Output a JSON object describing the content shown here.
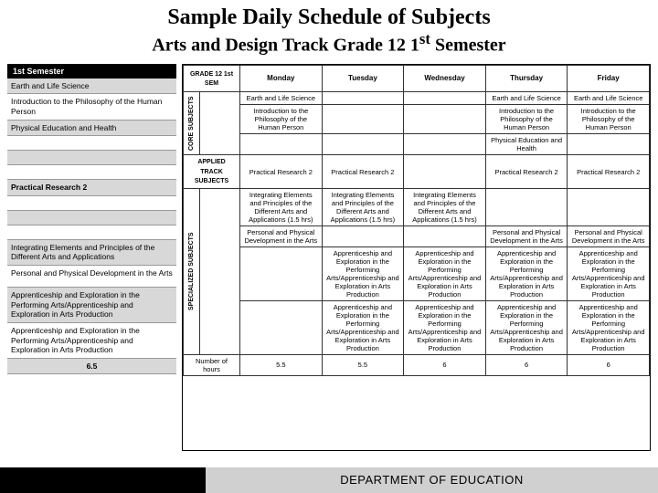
{
  "header": {
    "title": "Sample Daily Schedule of Subjects",
    "subtitle_pre": "Arts and Design Track Grade 12 1",
    "subtitle_sup": "st",
    "subtitle_post": " Semester"
  },
  "left": {
    "header": "1st Semester",
    "rows": [
      {
        "text": "Earth and Life Science",
        "gray": true
      },
      {
        "text": "Introduction to the Philosophy of the Human Person",
        "tall": true
      },
      {
        "text": "Physical Education and Health",
        "gray": true
      },
      {
        "text": ""
      },
      {
        "text": "",
        "gray": true
      },
      {
        "text": ""
      },
      {
        "text": "Practical Research 2",
        "gray": true,
        "bold": true
      },
      {
        "text": ""
      },
      {
        "text": "",
        "gray": true
      },
      {
        "text": ""
      },
      {
        "text": "Integrating Elements and Principles of the Different Arts and Applications",
        "gray": true,
        "tall": true
      },
      {
        "text": "Personal and Physical Development in the Arts",
        "tall": true
      },
      {
        "text": "Apprenticeship and Exploration in the Performing Arts/Apprenticeship and Exploration in Arts Production",
        "gray": true,
        "tall": true
      },
      {
        "text": "Apprenticeship and Exploration in the Performing Arts/Apprenticeship and Exploration in Arts Production",
        "tall": true
      },
      {
        "text": "6.5",
        "gray": true,
        "center": true,
        "bold": true
      }
    ]
  },
  "right": {
    "corner": "GRADE 12 1st SEM",
    "days": [
      "Monday",
      "Tuesday",
      "Wednesday",
      "Thursday",
      "Friday"
    ],
    "groups": {
      "core": "CORE SUBJECTS",
      "applied": "APPLIED TRACK SUBJECTS",
      "spec": "SPECIALIZED SUBJECTS"
    },
    "core_rows": [
      [
        "Earth and Life Science",
        "",
        "",
        "Earth and Life Science",
        "Earth and Life Science"
      ],
      [
        "Introduction to the Philosophy of the Human Person",
        "",
        "",
        "Introduction to the Philosophy of the Human Person",
        "Introduction to the Philosophy of the Human Person"
      ],
      [
        "",
        "",
        "",
        "Physical Education and Health",
        ""
      ]
    ],
    "applied_rows": [
      [
        "Practical Research 2",
        "Practical Research 2",
        "",
        "Practical Research 2",
        "Practical Research 2"
      ]
    ],
    "spec_rows": [
      [
        "Integrating Elements and Principles of the Different Arts and Applications (1.5 hrs)",
        "Integrating Elements and Principles of the Different Arts and Applications (1.5 hrs)",
        "Integrating Elements and Principles of the Different Arts and Applications (1.5 hrs)",
        "",
        ""
      ],
      [
        "Personal and Physical Development in the Arts",
        "",
        "",
        "Personal and Physical Development in the Arts",
        "Personal and Physical Development in the Arts"
      ],
      [
        "",
        "Apprenticeship and Exploration in the Performing Arts/Apprenticeship and Exploration in Arts Production",
        "Apprenticeship and Exploration in the Performing Arts/Apprenticeship and Exploration in Arts Production",
        "Apprenticeship and Exploration in the Performing Arts/Apprenticeship and Exploration in Arts Production",
        "Apprenticeship and Exploration in the Performing Arts/Apprenticeship and Exploration in Arts Production"
      ],
      [
        "",
        "Apprenticeship and Exploration in the Performing Arts/Apprenticeship and Exploration in Arts Production",
        "Apprenticeship and Exploration in the Performing Arts/Apprenticeship and Exploration in Arts Production",
        "Apprenticeship and Exploration in the Performing Arts/Apprenticeship and Exploration in Arts Production",
        "Apprenticeship and Exploration in the Performing Arts/Apprenticeship and Exploration in Arts Production"
      ]
    ],
    "hours_label": "Number of hours",
    "hours": [
      "5.5",
      "5.5",
      "6",
      "6",
      "6"
    ]
  },
  "footer": "DEPARTMENT OF EDUCATION"
}
